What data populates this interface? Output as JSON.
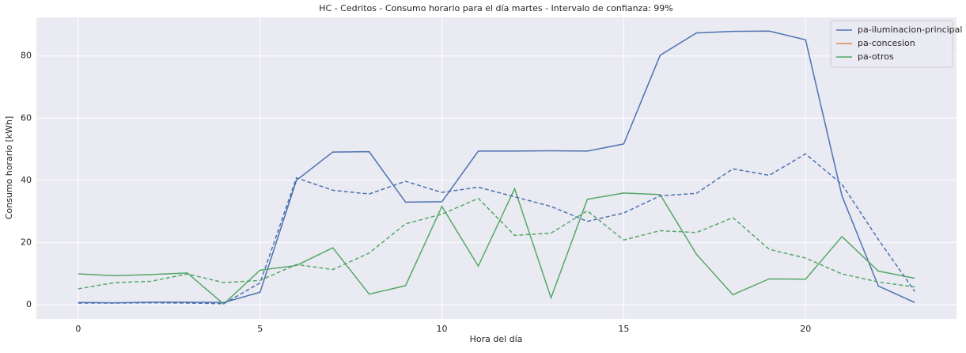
{
  "chart_data": {
    "type": "line",
    "title": "HC - Cedritos - Consumo horario para el día martes - Intervalo de confianza: 99%",
    "x_label": "Hora del día",
    "y_label": "Consumo horario [kWh]",
    "x": [
      0,
      1,
      2,
      3,
      4,
      5,
      6,
      7,
      8,
      9,
      10,
      11,
      12,
      13,
      14,
      15,
      16,
      17,
      18,
      19,
      20,
      21,
      22,
      23
    ],
    "series": [
      {
        "name": "pa-iluminacion-principal",
        "color": "#4c72b0",
        "values": [
          0.7,
          0.6,
          0.8,
          0.8,
          0.7,
          4.0,
          40,
          49.1,
          49.2,
          33,
          33.1,
          49.4,
          49.4,
          49.5,
          49.4,
          51.7,
          80.2,
          87.4,
          87.9,
          88,
          85.2,
          35,
          6,
          0.7
        ]
      },
      {
        "name": "pa-concesion",
        "color": "#dd8452",
        "values": [
          null,
          null,
          null,
          null,
          null,
          null,
          null,
          null,
          null,
          null,
          null,
          null,
          null,
          null,
          null,
          null,
          null,
          null,
          null,
          null,
          null,
          null,
          null,
          null
        ]
      },
      {
        "name": "pa-otros",
        "color": "#55a868",
        "values": [
          9.9,
          9.3,
          9.7,
          10.2,
          0.2,
          11.1,
          12.6,
          18.3,
          3.4,
          6.1,
          31.6,
          12.4,
          37.3,
          2.2,
          33.9,
          35.9,
          35.4,
          16.2,
          3.2,
          8.3,
          8.2,
          21.9,
          10.8,
          8.5
        ]
      },
      {
        "color": "#4c72b0",
        "dashed": true,
        "values": [
          0.5,
          0.5,
          0.6,
          0.5,
          0.3,
          7,
          40.8,
          36.8,
          35.6,
          39.7,
          36.1,
          37.8,
          34.7,
          31.6,
          26.8,
          29.5,
          35,
          35.8,
          43.7,
          41.6,
          48.5,
          38.7,
          21,
          4.3
        ]
      },
      {
        "color": "#55a868",
        "dashed": true,
        "values": [
          5.1,
          7.1,
          7.5,
          9.9,
          7.1,
          7.8,
          12.9,
          11.3,
          16.6,
          26,
          29.1,
          34.2,
          22.3,
          23.0,
          30.2,
          20.8,
          23.8,
          23.2,
          28,
          17.8,
          15,
          9.9,
          7.3,
          5.7
        ]
      }
    ],
    "xlim": [
      -1.15,
      24.15
    ],
    "xticks": [
      0,
      5,
      10,
      15,
      20
    ],
    "ylim": [
      -4.6,
      92.4
    ],
    "yticks": [
      0,
      20,
      40,
      60,
      80
    ],
    "grid": true,
    "legend": "upper-right"
  }
}
